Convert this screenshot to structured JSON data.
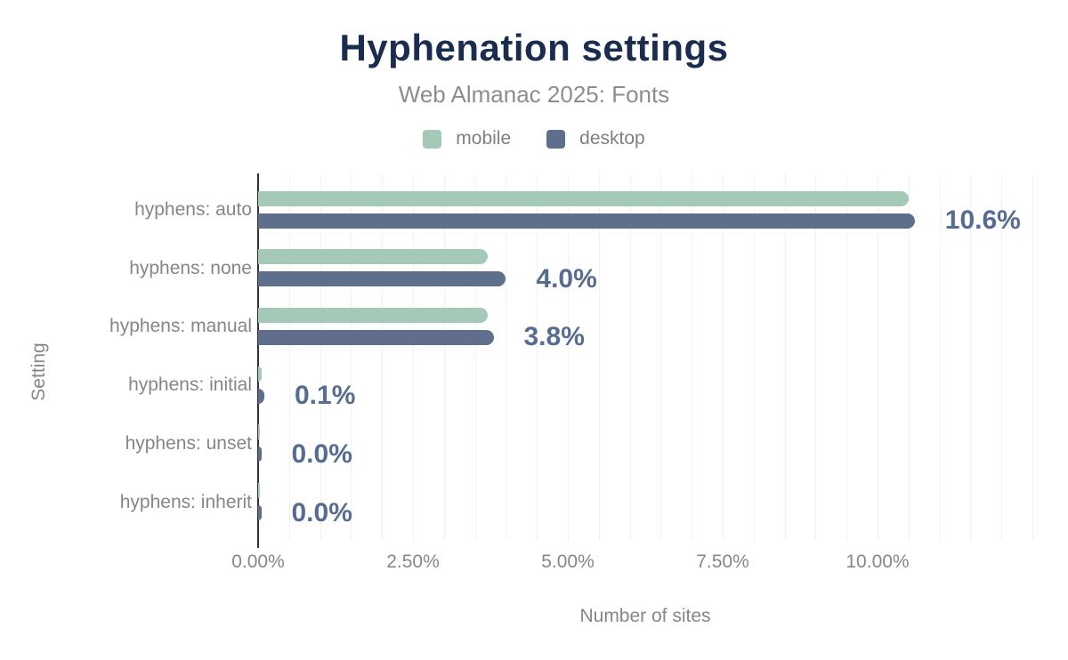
{
  "header": {
    "title": "Hyphenation settings",
    "subtitle": "Web Almanac 2025: Fonts"
  },
  "chart_data": {
    "type": "bar",
    "orientation": "horizontal",
    "title": "Hyphenation settings",
    "subtitle": "Web Almanac 2025: Fonts",
    "xlabel": "Number of sites",
    "ylabel": "Setting",
    "categories": [
      "hyphens: auto",
      "hyphens: none",
      "hyphens: manual",
      "hyphens: initial",
      "hyphens: unset",
      "hyphens: inherit"
    ],
    "series": [
      {
        "name": "mobile",
        "color": "#a4c9b7",
        "values": [
          10.5,
          3.7,
          3.7,
          0.06,
          0.03,
          0.03
        ]
      },
      {
        "name": "desktop",
        "color": "#5e6e8b",
        "values": [
          10.6,
          4.0,
          3.8,
          0.1,
          0.05,
          0.05
        ]
      }
    ],
    "value_labels": [
      "10.6%",
      "4.0%",
      "3.8%",
      "0.1%",
      "0.0%",
      "0.0%"
    ],
    "xlim": [
      0,
      12.5
    ],
    "grid_step": 0.5,
    "grid_on": true,
    "legend_position": "top",
    "x_ticks": [
      {
        "value": 0,
        "label": "0.00%"
      },
      {
        "value": 2.5,
        "label": "2.50%"
      },
      {
        "value": 5,
        "label": "5.00%"
      },
      {
        "value": 7.5,
        "label": "7.50%"
      },
      {
        "value": 10,
        "label": "10.00%"
      }
    ]
  },
  "palette": {
    "title_text": "#1b2d4f",
    "value_label_text": "#566c91",
    "muted_text": "#84878a",
    "subtitle_text": "#8b8e91",
    "axis_line": "#2f3337",
    "gridline": "#f2f3f4",
    "background": "#ffffff"
  }
}
